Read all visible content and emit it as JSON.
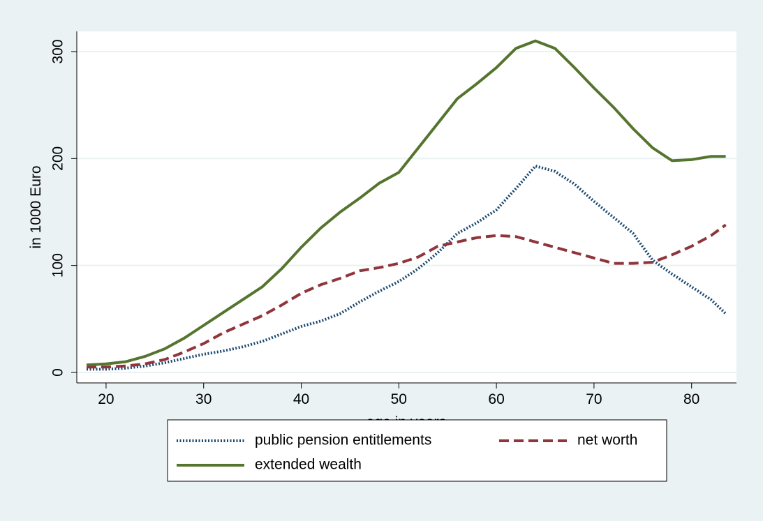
{
  "chart_data": {
    "type": "line",
    "x_label": "age in years",
    "y_label": "in 1000 Euro",
    "x": [
      18,
      20,
      22,
      24,
      26,
      28,
      30,
      32,
      34,
      36,
      38,
      40,
      42,
      44,
      46,
      48,
      50,
      52,
      54,
      56,
      58,
      60,
      62,
      64,
      66,
      68,
      70,
      72,
      74,
      76,
      78,
      80,
      82,
      83.5
    ],
    "series": [
      {
        "name": "public pension entitlements",
        "color": "#1a476f",
        "dash": "dot",
        "values": [
          3,
          3,
          4,
          6,
          9,
          13,
          17,
          20,
          24,
          29,
          36,
          43,
          48,
          55,
          66,
          76,
          85,
          97,
          112,
          130,
          140,
          152,
          172,
          193,
          188,
          176,
          160,
          145,
          130,
          105,
          92,
          80,
          68,
          55
        ]
      },
      {
        "name": "net worth",
        "color": "#90353b",
        "dash": "dash",
        "values": [
          5,
          5,
          6,
          8,
          12,
          19,
          27,
          37,
          45,
          53,
          63,
          74,
          82,
          88,
          95,
          98,
          102,
          108,
          118,
          122,
          126,
          128,
          127,
          122,
          117,
          112,
          107,
          102,
          102,
          103,
          110,
          118,
          128,
          138
        ]
      },
      {
        "name": "extended wealth",
        "color": "#55752f",
        "dash": "solid",
        "values": [
          7,
          8,
          10,
          15,
          22,
          32,
          44,
          56,
          68,
          80,
          97,
          117,
          135,
          150,
          163,
          177,
          187,
          210,
          233,
          256,
          270,
          285,
          303,
          310,
          303,
          285,
          266,
          248,
          228,
          210,
          198,
          199,
          202,
          202
        ]
      }
    ],
    "xlim": [
      17,
      84.6
    ],
    "xticks": [
      20,
      30,
      40,
      50,
      60,
      70,
      80
    ],
    "ylim": [
      -9.8,
      318.9
    ],
    "yticks": [
      0,
      100,
      200,
      300
    ],
    "grid": true,
    "legend": "bottom"
  }
}
